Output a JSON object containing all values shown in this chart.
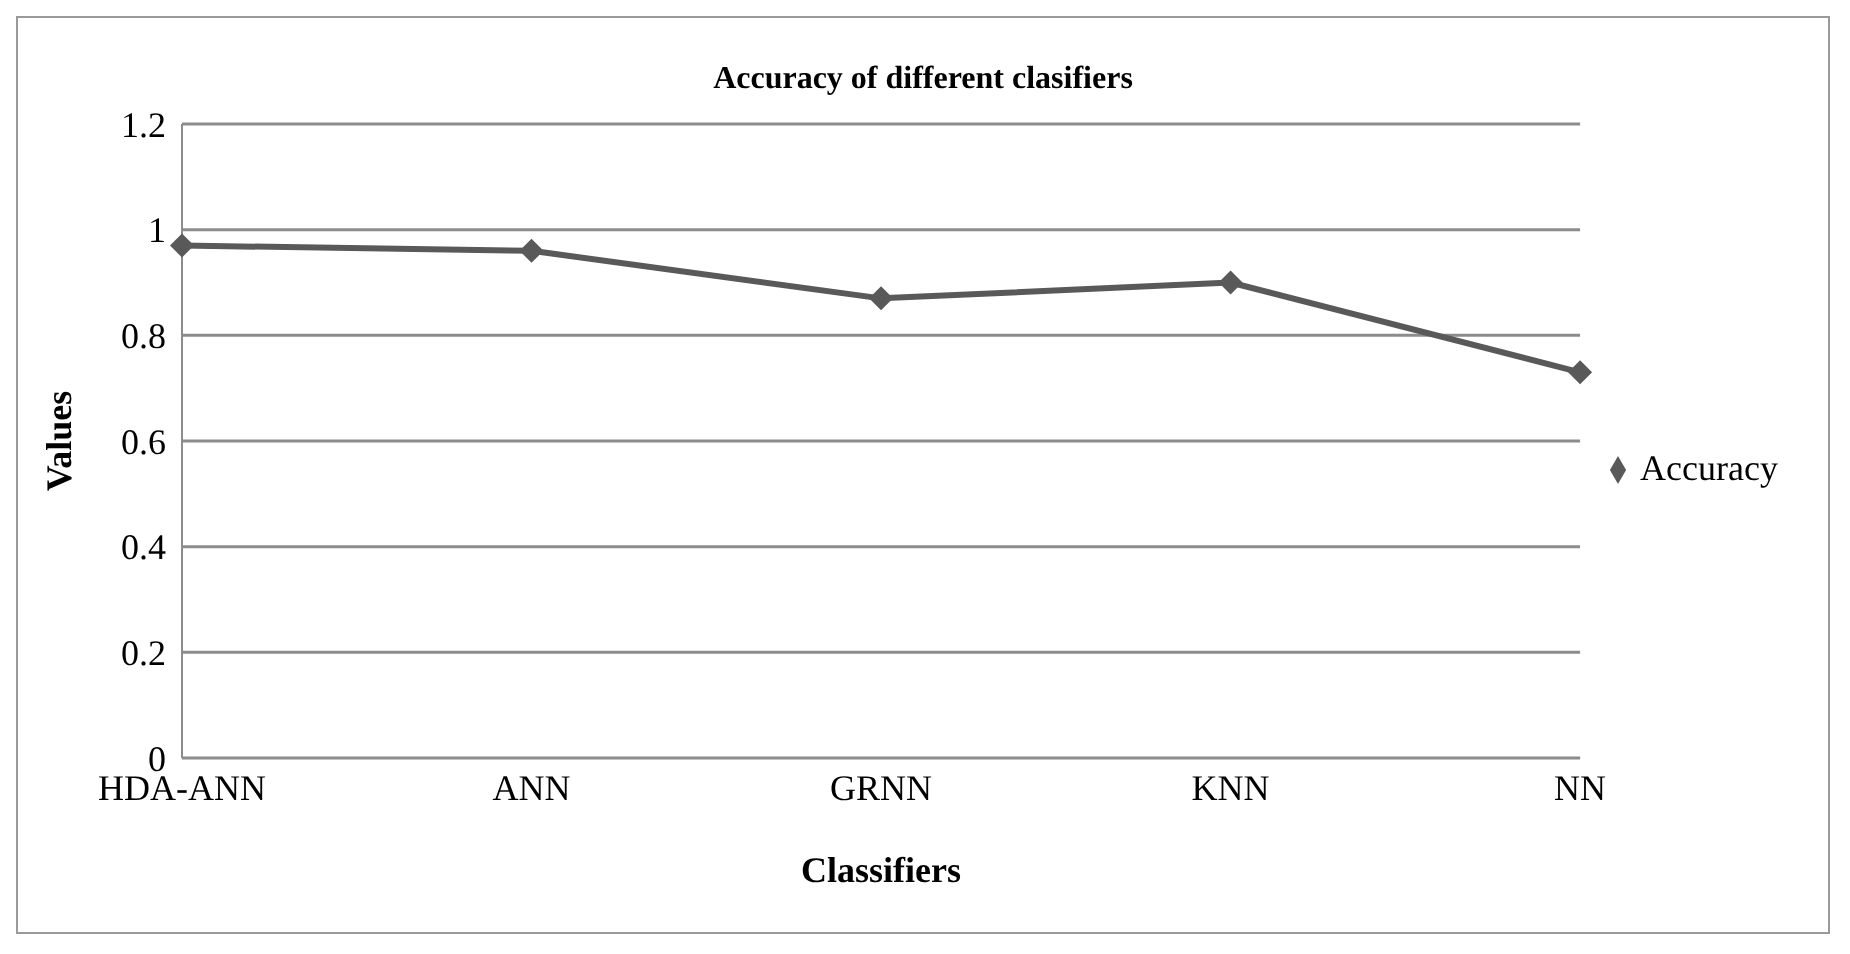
{
  "chart_data": {
    "type": "line",
    "title": "Accuracy of different clasifiers",
    "xlabel": "Classifiers",
    "ylabel": "Values",
    "categories": [
      "HDA-ANN",
      "ANN",
      "GRNN",
      "KNN",
      "NN"
    ],
    "series": [
      {
        "name": "Accuracy",
        "color": "#595959",
        "values": [
          0.97,
          0.96,
          0.87,
          0.9,
          0.73
        ]
      }
    ],
    "ylim": [
      0,
      1.2
    ],
    "yticks": [
      0,
      0.2,
      0.4,
      0.6,
      0.8,
      1,
      1.2
    ],
    "grid": "y",
    "legend": "right",
    "marker": "diamond",
    "line_style": "solid"
  }
}
